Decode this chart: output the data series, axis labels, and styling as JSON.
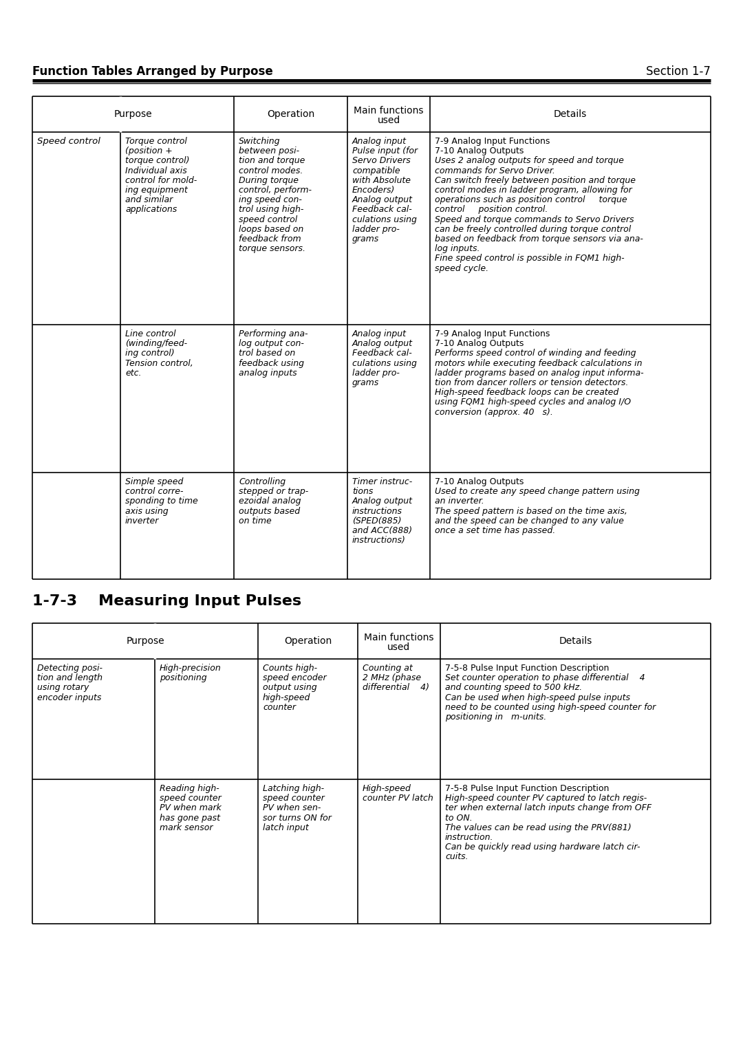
{
  "page_title_left": "Function Tables Arranged by Purpose",
  "page_title_right": "Section 1-7",
  "section_heading": "1-7-3    Measuring Input Pulses",
  "bg_color": "#ffffff",
  "text_color": "#000000",
  "t1_row1_purpose_main": "Speed control",
  "t1_row1_purpose_sub": [
    "Torque control",
    "(position +",
    "torque control)",
    "Individual axis",
    "control for mold-",
    "ing equipment",
    "and similar",
    "applications"
  ],
  "t1_row1_operation": [
    "Switching",
    "between posi-",
    "tion and torque",
    "control modes.",
    "During torque",
    "control, perform-",
    "ing speed con-",
    "trol using high-",
    "speed control",
    "loops based on",
    "feedback from",
    "torque sensors."
  ],
  "t1_row1_main": [
    "Analog input",
    "Pulse input (for",
    "Servo Drivers",
    "compatible",
    "with Absolute",
    "Encoders)",
    "Analog output",
    "Feedback cal-",
    "culations using",
    "ladder pro-",
    "grams"
  ],
  "t1_row1_details": [
    "7-9 Analog Input Functions",
    "7-10 Analog Outputs",
    "Uses 2 analog outputs for speed and torque",
    "commands for Servo Driver.",
    "Can switch freely between position and torque",
    "control modes in ladder program, allowing for",
    "operations such as position control     torque",
    "control     position control.",
    "Speed and torque commands to Servo Drivers",
    "can be freely controlled during torque control",
    "based on feedback from torque sensors via ana-",
    "log inputs.",
    "Fine speed control is possible in FQM1 high-",
    "speed cycle."
  ],
  "t1_row2_purpose_sub": [
    "Line control",
    "(winding/feed-",
    "ing control)",
    "Tension control,",
    "etc."
  ],
  "t1_row2_operation": [
    "Performing ana-",
    "log output con-",
    "trol based on",
    "feedback using",
    "analog inputs"
  ],
  "t1_row2_main": [
    "Analog input",
    "Analog output",
    "Feedback cal-",
    "culations using",
    "ladder pro-",
    "grams"
  ],
  "t1_row2_details": [
    "7-9 Analog Input Functions",
    "7-10 Analog Outputs",
    "Performs speed control of winding and feeding",
    "motors while executing feedback calculations in",
    "ladder programs based on analog input informa-",
    "tion from dancer rollers or tension detectors.",
    "High-speed feedback loops can be created",
    "using FQM1 high-speed cycles and analog I/O",
    "conversion (approx. 40   s)."
  ],
  "t1_row3_purpose_sub": [
    "Simple speed",
    "control corre-",
    "sponding to time",
    "axis using",
    "inverter"
  ],
  "t1_row3_operation": [
    "Controlling",
    "stepped or trap-",
    "ezoidal analog",
    "outputs based",
    "on time"
  ],
  "t1_row3_main": [
    "Timer instruc-",
    "tions",
    "Analog output",
    "instructions",
    "(SPED(885)",
    "and ACC(888)",
    "instructions)"
  ],
  "t1_row3_details": [
    "7-10 Analog Outputs",
    "Used to create any speed change pattern using",
    "an inverter.",
    "The speed pattern is based on the time axis,",
    "and the speed can be changed to any value",
    "once a set time has passed."
  ],
  "t2_row1_purpose_main": [
    "Detecting posi-",
    "tion and length",
    "using rotary",
    "encoder inputs"
  ],
  "t2_row1_purpose_sub": [
    "High-precision",
    "positioning"
  ],
  "t2_row1_operation": [
    "Counts high-",
    "speed encoder",
    "output using",
    "high-speed",
    "counter"
  ],
  "t2_row1_main": [
    "Counting at",
    "2 MHz (phase",
    "differential    4)"
  ],
  "t2_row1_details": [
    "7-5-8 Pulse Input Function Description",
    "Set counter operation to phase differential    4",
    "and counting speed to 500 kHz.",
    "Can be used when high-speed pulse inputs",
    "need to be counted using high-speed counter for",
    "positioning in   m-units."
  ],
  "t2_row2_purpose_sub": [
    "Reading high-",
    "speed counter",
    "PV when mark",
    "has gone past",
    "mark sensor"
  ],
  "t2_row2_operation": [
    "Latching high-",
    "speed counter",
    "PV when sen-",
    "sor turns ON for",
    "latch input"
  ],
  "t2_row2_main": [
    "High-speed",
    "counter PV latch"
  ],
  "t2_row2_details": [
    "7-5-8 Pulse Input Function Description",
    "High-speed counter PV captured to latch regis-",
    "ter when external latch inputs change from OFF",
    "to ON.",
    "The values can be read using the PRV(881)",
    "instruction.",
    "Can be quickly read using hardware latch cir-",
    "cuits."
  ]
}
